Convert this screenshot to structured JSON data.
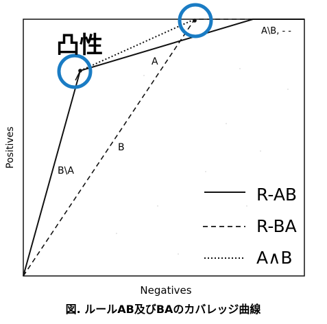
{
  "title": "凸性",
  "caption": "図. ルールAB及びBAのカバレッジ曲線",
  "axes": {
    "xlabel": "Negatives",
    "ylabel": "Positives"
  },
  "curve_labels": {
    "b_not_a": "B\\A",
    "a": "A",
    "b": "B",
    "a_not_b": "A\\B, - -"
  },
  "legend": [
    {
      "label": "R-AB",
      "style": "solid"
    },
    {
      "label": "R-BA",
      "style": "dashed"
    },
    {
      "label": "A∧B",
      "style": "dotted"
    }
  ],
  "colors": {
    "highlight_circle": "#1a7cc4",
    "line": "#111111"
  }
}
